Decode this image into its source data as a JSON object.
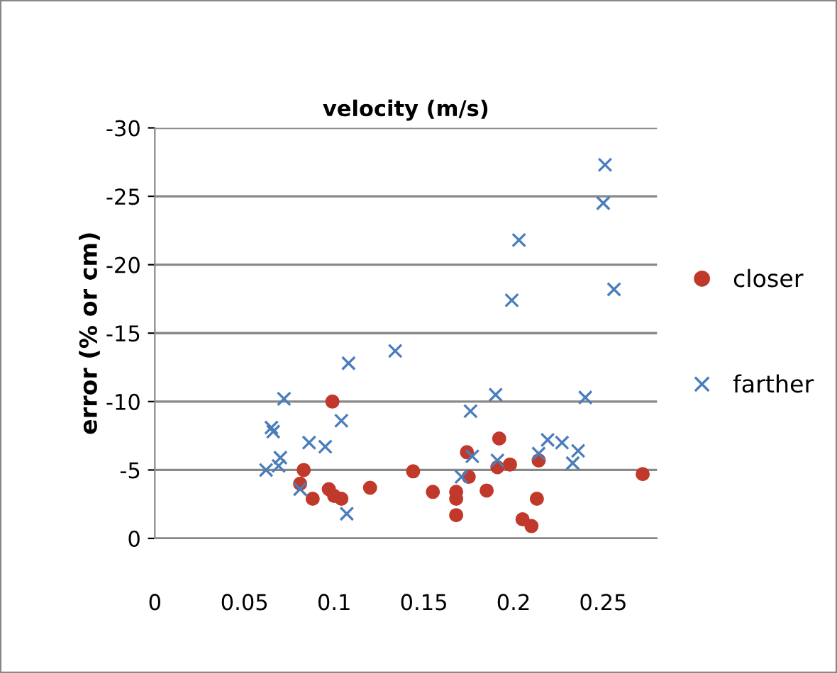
{
  "chart_data": {
    "type": "scatter",
    "title": "velocity (m/s)",
    "ylabel": "error (% or cm)",
    "xlim": [
      0,
      0.28
    ],
    "xticks": [
      0,
      0.05,
      0.1,
      0.15,
      0.2,
      0.25
    ],
    "ylim": [
      0,
      -30
    ],
    "yticks": [
      {
        "value": 0,
        "label": "0"
      },
      {
        "value": -5,
        "label": "-5"
      },
      {
        "value": -10,
        "label": "-10"
      },
      {
        "value": -15,
        "label": "-15"
      },
      {
        "value": -20,
        "label": "-20"
      },
      {
        "value": -25,
        "label": "-25"
      },
      {
        "value": -30,
        "label": "-30"
      }
    ],
    "grid": "y",
    "legend": "right",
    "series": [
      {
        "name": "closer",
        "color": "#c0392b",
        "marker": "circle",
        "x": [
          0.099,
          0.083,
          0.144,
          0.081,
          0.088,
          0.097,
          0.1,
          0.104,
          0.12,
          0.155,
          0.168,
          0.168,
          0.168,
          0.174,
          0.175,
          0.185,
          0.192,
          0.191,
          0.198,
          0.214,
          0.213,
          0.205,
          0.21,
          0.272
        ],
        "values": [
          -10.0,
          -5.0,
          -4.9,
          -4.0,
          -2.9,
          -3.6,
          -3.1,
          -2.9,
          -3.7,
          -3.4,
          -2.9,
          -3.4,
          -1.7,
          -6.3,
          -4.5,
          -3.5,
          -7.3,
          -5.2,
          -5.4,
          -5.7,
          -2.9,
          -1.4,
          -0.9,
          -4.7
        ]
      },
      {
        "name": "farther",
        "color": "#4a7ebb",
        "marker": "cross",
        "x": [
          0.251,
          0.25,
          0.203,
          0.199,
          0.256,
          0.108,
          0.134,
          0.104,
          0.176,
          0.19,
          0.24,
          0.095,
          0.177,
          0.191,
          0.214,
          0.219,
          0.227,
          0.236,
          0.233,
          0.171,
          0.107,
          0.072,
          0.066,
          0.065,
          0.086,
          0.07,
          0.062,
          0.069,
          0.081
        ],
        "values": [
          -27.3,
          -24.5,
          -21.8,
          -17.4,
          -18.2,
          -12.8,
          -13.7,
          -8.6,
          -9.3,
          -10.5,
          -10.3,
          -6.7,
          -6.0,
          -5.7,
          -6.2,
          -7.2,
          -7.0,
          -6.4,
          -5.5,
          -4.5,
          -1.8,
          -10.2,
          -7.8,
          -8.1,
          -7.0,
          -5.9,
          -5.0,
          -5.3,
          -3.6
        ]
      }
    ]
  }
}
